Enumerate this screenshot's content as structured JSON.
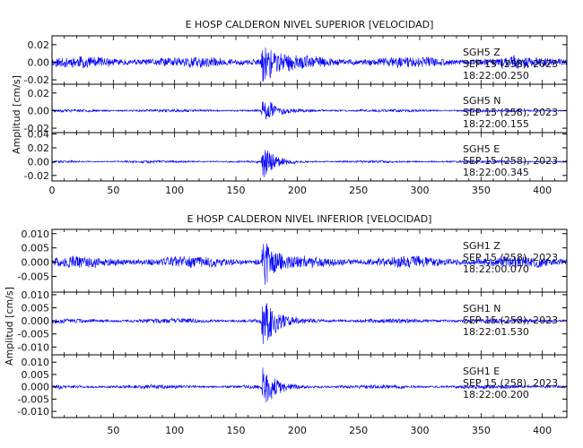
{
  "chart_data": [
    {
      "type": "line",
      "title": "E HOSP CALDERON NIVEL SUPERIOR [VELOCIDAD]",
      "ylabel": "Amplitud [cm/s]",
      "xlim": [
        0,
        420
      ],
      "xticks": [
        0,
        50,
        100,
        150,
        200,
        250,
        300,
        350,
        400
      ],
      "event_time": 172,
      "grid": false,
      "series": [
        {
          "station": "SGH5",
          "component": "Z",
          "date": "SEP 15 (258), 2023",
          "time": "18:22:00.250",
          "ylim": [
            -0.025,
            0.03
          ],
          "yticks": [
            "0.02",
            "0.00",
            "-0.02"
          ],
          "ytick_values": [
            0.02,
            0.0,
            -0.02
          ],
          "noise_amplitude": 0.007,
          "peak_amplitude": 0.024,
          "decay_s": 12,
          "seed": 11
        },
        {
          "station": "SGH5",
          "component": "N",
          "date": "SEP 15 (258), 2023",
          "time": "18:22:00.155",
          "ylim": [
            -0.025,
            0.03
          ],
          "yticks": [
            "0.02",
            "0.00",
            "-0.02"
          ],
          "ytick_values": [
            0.02,
            0.0,
            -0.02
          ],
          "noise_amplitude": 0.0018,
          "peak_amplitude": 0.015,
          "decay_s": 10,
          "seed": 23
        },
        {
          "station": "SGH5",
          "component": "E",
          "date": "SEP 15 (258), 2023",
          "time": "18:22:00.345",
          "ylim": [
            -0.028,
            0.042
          ],
          "yticks": [
            "0.04",
            "0.02",
            "0.00",
            "-0.02"
          ],
          "ytick_values": [
            0.04,
            0.02,
            0.0,
            -0.02
          ],
          "noise_amplitude": 0.002,
          "peak_amplitude": 0.028,
          "decay_s": 9,
          "seed": 37
        }
      ]
    },
    {
      "type": "line",
      "title": "E HOSP CALDERON NIVEL INFERIOR [VELOCIDAD]",
      "ylabel": "Amplitud [cm/s]",
      "xlim": [
        0,
        420
      ],
      "xticks": [
        50,
        100,
        150,
        200,
        250,
        300,
        350,
        400
      ],
      "event_time": 172,
      "grid": false,
      "series": [
        {
          "station": "SGH1",
          "component": "Z",
          "date": "SEP 15 (258), 2023",
          "time": "18:22:00.070",
          "ylim": [
            -0.0105,
            0.0115
          ],
          "yticks": [
            "0.010",
            "0.005",
            "0.000",
            "-0.005"
          ],
          "ytick_values": [
            0.01,
            0.005,
            0.0,
            -0.005
          ],
          "noise_amplitude": 0.0022,
          "peak_amplitude": 0.0105,
          "decay_s": 8,
          "seed": 51
        },
        {
          "station": "SGH1",
          "component": "N",
          "date": "SEP 15 (258), 2023",
          "time": "18:22:01.530",
          "ylim": [
            -0.013,
            0.011
          ],
          "yticks": [
            "0.010",
            "0.005",
            "0.000",
            "-0.005",
            "-0.010"
          ],
          "ytick_values": [
            0.01,
            0.005,
            0.0,
            -0.005,
            -0.01
          ],
          "noise_amplitude": 0.001,
          "peak_amplitude": 0.0115,
          "decay_s": 10,
          "seed": 67
        },
        {
          "station": "SGH1",
          "component": "E",
          "date": "SEP 15 (258), 2023",
          "time": "18:22:00.200",
          "ylim": [
            -0.0125,
            0.013
          ],
          "yticks": [
            "0.010",
            "0.005",
            "0.000",
            "-0.005",
            "-0.010"
          ],
          "ytick_values": [
            0.01,
            0.005,
            0.0,
            -0.005,
            -0.01
          ],
          "noise_amplitude": 0.0009,
          "peak_amplitude": 0.0105,
          "decay_s": 9,
          "seed": 83
        }
      ]
    }
  ],
  "colors": {
    "trace": "#0000ff",
    "axes": "#000000",
    "text": "#111111",
    "background": "#ffffff"
  }
}
